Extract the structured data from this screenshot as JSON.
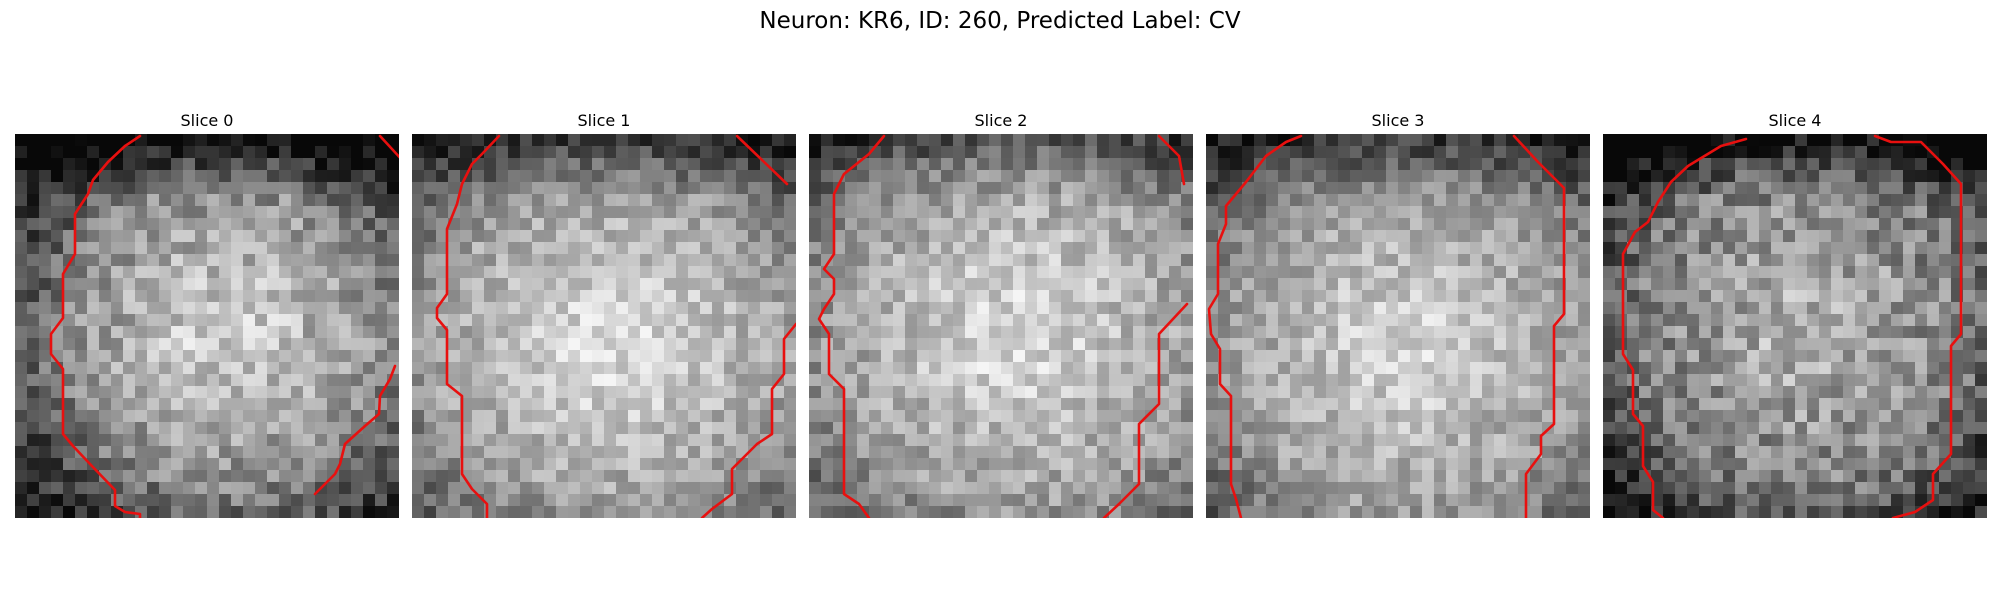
{
  "figure": {
    "title": "Neuron: KR6, ID: 260, Predicted Label: CV",
    "contour_color": "#e8100f",
    "slices": [
      {
        "label": "Slice 0"
      },
      {
        "label": "Slice 1"
      },
      {
        "label": "Slice 2"
      },
      {
        "label": "Slice 3"
      },
      {
        "label": "Slice 4"
      }
    ]
  }
}
